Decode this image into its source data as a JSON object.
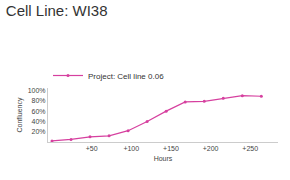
{
  "chart_data": {
    "type": "line",
    "title": "Cell Line: WI38",
    "x_label": "Hours",
    "y_label": "Confluency",
    "x": [
      0,
      24,
      48,
      72,
      96,
      120,
      144,
      168,
      192,
      216,
      240,
      264
    ],
    "series": [
      {
        "name": "Project: Cell line 0.06",
        "color": "#d6409f",
        "marker": "circle",
        "values": [
          2,
          5,
          10,
          12,
          22,
          40,
          60,
          78,
          79,
          85,
          90,
          89
        ]
      }
    ],
    "xlim": [
      -5,
      285
    ],
    "xticks": [
      {
        "value": 50,
        "label": "+50"
      },
      {
        "value": 100,
        "label": "+100"
      },
      {
        "value": 150,
        "label": "+150"
      },
      {
        "value": 200,
        "label": "+200"
      },
      {
        "value": 250,
        "label": "+250"
      }
    ],
    "ylim": [
      0,
      105
    ],
    "yticks": [
      {
        "value": 20,
        "label": "20%"
      },
      {
        "value": 40,
        "label": "40%"
      },
      {
        "value": 60,
        "label": "60%"
      },
      {
        "value": 80,
        "label": "80%"
      },
      {
        "value": 100,
        "label": "100%"
      }
    ],
    "grid": false,
    "legend": "top left"
  }
}
